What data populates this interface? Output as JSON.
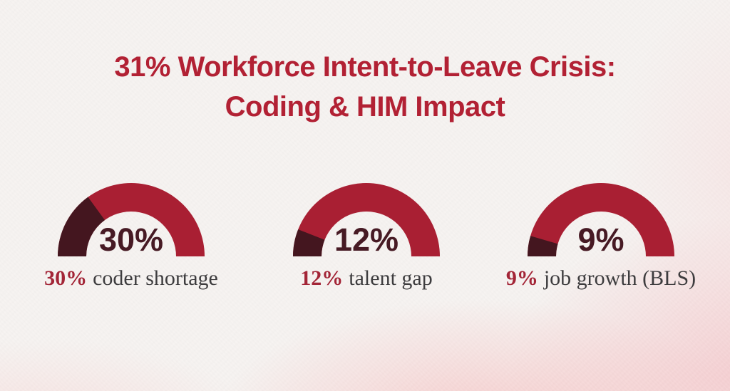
{
  "header": {
    "title_line1": "31% Workforce Intent-to-Leave Crisis:",
    "title_line2": "Coding & HIM Impact"
  },
  "colors": {
    "page_background": "#f6f3f1",
    "bottom_wash_pink": "#f7c9ca",
    "title_red": "#b22134",
    "arc_remainder_red": "#a91f33",
    "arc_value_dark_maroon": "#44161f",
    "center_value_text": "#471a24",
    "caption_accent_red": "#a32537",
    "caption_text_gray": "#3d3c3e"
  },
  "chart_data": {
    "type": "gauge",
    "style": "semicircle-donut",
    "title": "31% Workforce Intent-to-Leave Crisis: Coding & HIM Impact",
    "unit": "%",
    "max": 100,
    "arc_span_degrees": 180,
    "value_segment_color": "#44161f",
    "remainder_segment_color": "#a91f33",
    "gauges": [
      {
        "value": 30,
        "center_label": "30%",
        "caption_accent": "30%",
        "caption_text": "coder shortage"
      },
      {
        "value": 12,
        "center_label": "12%",
        "caption_accent": "12%",
        "caption_text": "talent gap"
      },
      {
        "value": 9,
        "center_label": "9%",
        "caption_accent": "9%",
        "caption_text": "job growth (BLS)"
      }
    ]
  }
}
